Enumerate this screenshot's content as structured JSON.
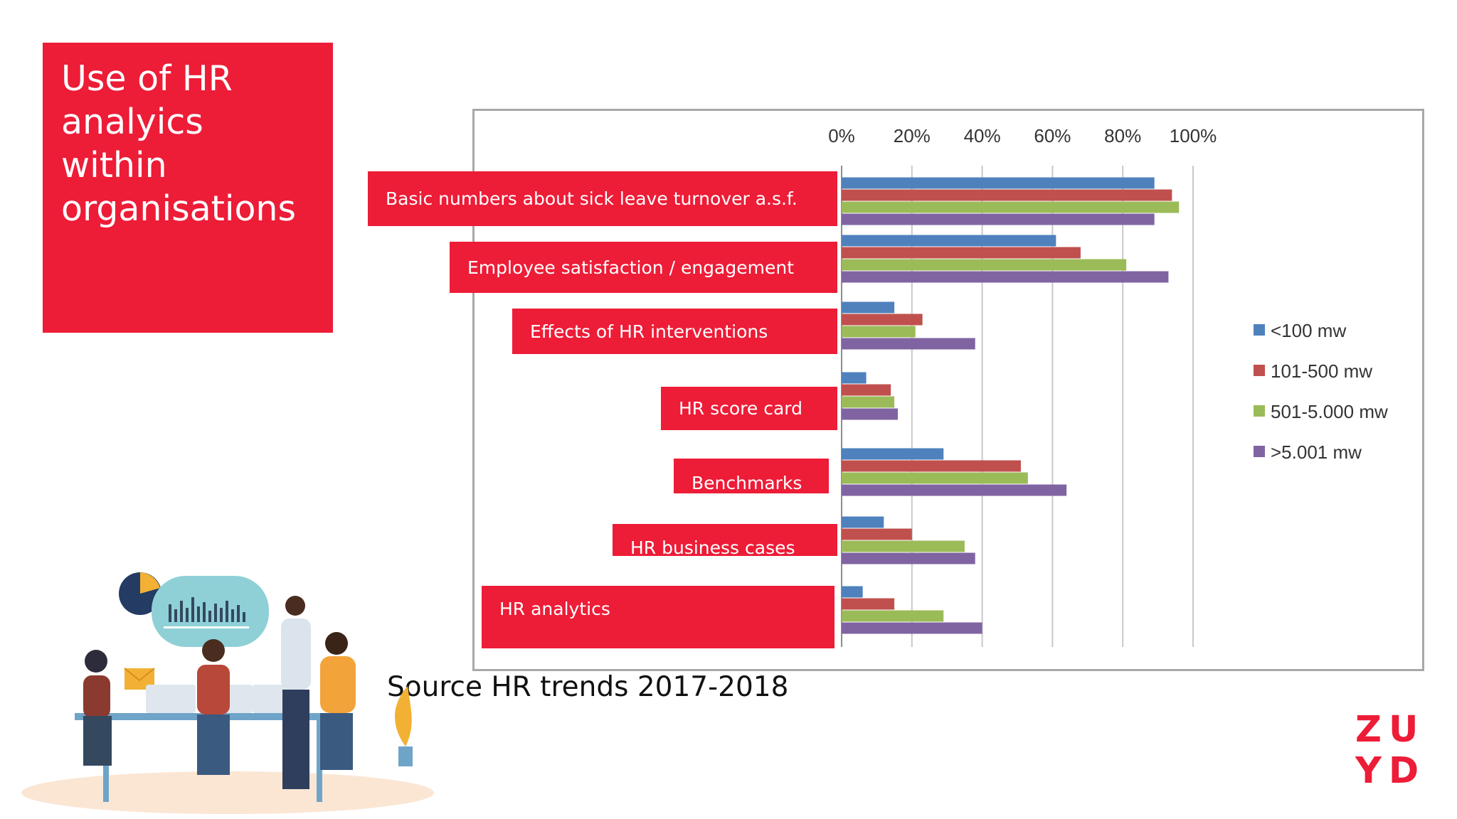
{
  "slide": {
    "title": "Use of HR analyics within organisations",
    "source": "Source HR trends 2017-2018",
    "logo_line1": "ZU",
    "logo_line2": "YD"
  },
  "colors": {
    "accent_red": "#ed1c37",
    "series": [
      "#4f81bd",
      "#c0504d",
      "#9bbb59",
      "#8064a2"
    ]
  },
  "illustration": {
    "icon": "team-meeting-illustration"
  },
  "chart_data": {
    "type": "bar",
    "orientation": "horizontal",
    "categories": [
      "Basic numbers about sick leave turnover a.s.f.",
      "Employee satisfaction / engagement",
      "Effects of HR interventions",
      "HR score card",
      "Benchmarks",
      "HR business cases",
      "HR analytics"
    ],
    "series": [
      {
        "name": "<100 mw",
        "values": [
          89,
          61,
          15,
          7,
          29,
          12,
          6
        ]
      },
      {
        "name": "101-500 mw",
        "values": [
          94,
          68,
          23,
          14,
          51,
          20,
          15
        ]
      },
      {
        "name": "501-5.000 mw",
        "values": [
          96,
          81,
          21,
          15,
          53,
          35,
          29
        ]
      },
      {
        "name": ">5.001 mw",
        "values": [
          89,
          93,
          38,
          16,
          64,
          38,
          40
        ]
      }
    ],
    "xlim": [
      0,
      100
    ],
    "xticks": [
      "0%",
      "20%",
      "40%",
      "60%",
      "80%",
      "100%"
    ],
    "grid": true,
    "legend_position": "right"
  }
}
